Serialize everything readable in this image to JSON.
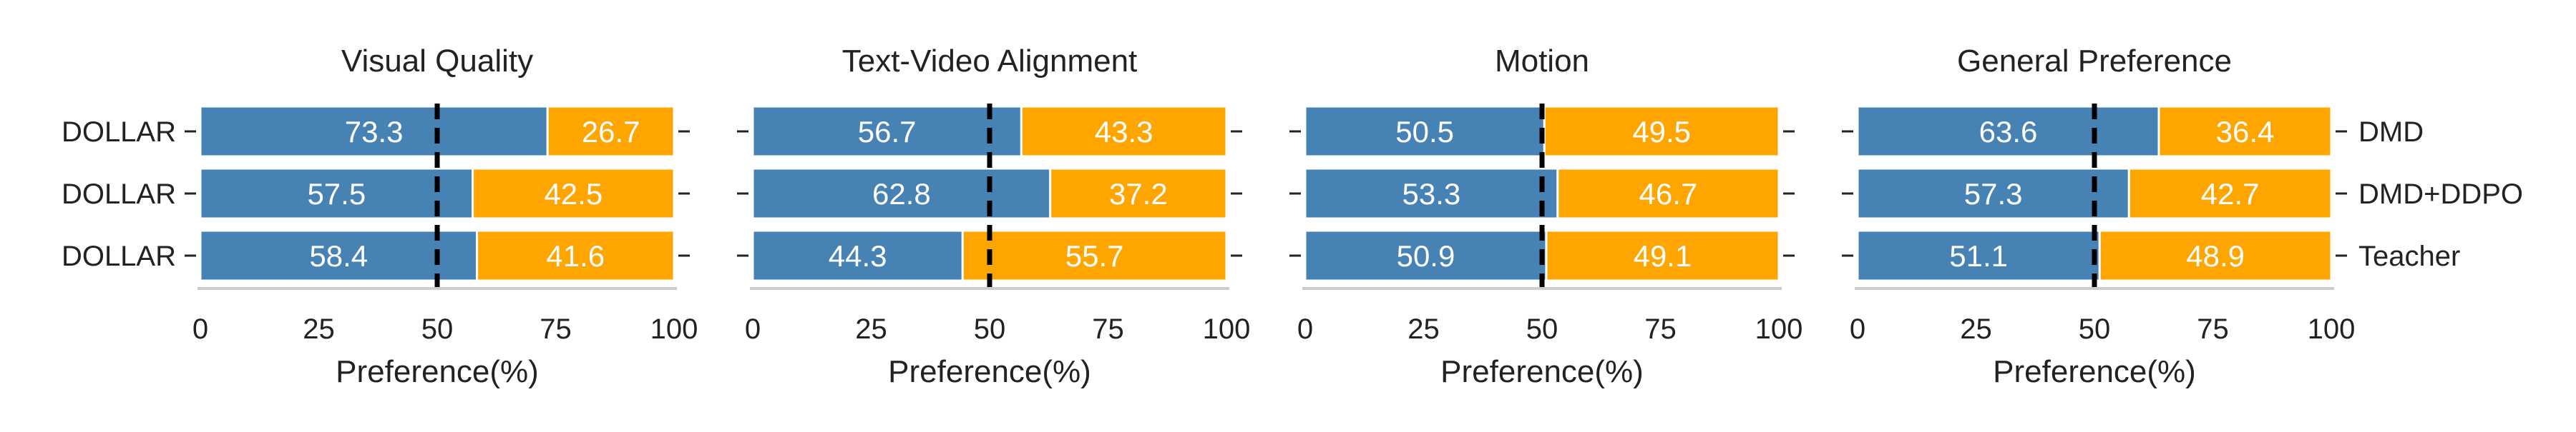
{
  "chart_data": [
    {
      "type": "bar",
      "orientation": "horizontal",
      "stacked": true,
      "title": "Visual Quality",
      "xlabel": "Preference(%)",
      "xlim": [
        0,
        100
      ],
      "xticks": [
        "0",
        "25",
        "50",
        "75",
        "100"
      ],
      "reference_line": 50,
      "left_labels": [
        "DOLLAR",
        "DOLLAR",
        "DOLLAR"
      ],
      "right_labels": [],
      "series": [
        {
          "values": [
            73.3,
            57.5,
            58.4
          ],
          "labels": [
            "73.3",
            "57.5",
            "58.4"
          ]
        },
        {
          "values": [
            26.7,
            42.5,
            41.6
          ],
          "labels": [
            "26.7",
            "42.5",
            "41.6"
          ]
        }
      ]
    },
    {
      "type": "bar",
      "orientation": "horizontal",
      "stacked": true,
      "title": "Text-Video Alignment",
      "xlabel": "Preference(%)",
      "xlim": [
        0,
        100
      ],
      "xticks": [
        "0",
        "25",
        "50",
        "75",
        "100"
      ],
      "reference_line": 50,
      "left_labels": [],
      "right_labels": [],
      "series": [
        {
          "values": [
            56.7,
            62.8,
            44.3
          ],
          "labels": [
            "56.7",
            "62.8",
            "44.3"
          ]
        },
        {
          "values": [
            43.3,
            37.2,
            55.7
          ],
          "labels": [
            "43.3",
            "37.2",
            "55.7"
          ]
        }
      ]
    },
    {
      "type": "bar",
      "orientation": "horizontal",
      "stacked": true,
      "title": "Motion",
      "xlabel": "Preference(%)",
      "xlim": [
        0,
        100
      ],
      "xticks": [
        "0",
        "25",
        "50",
        "75",
        "100"
      ],
      "reference_line": 50,
      "left_labels": [],
      "right_labels": [],
      "series": [
        {
          "values": [
            50.5,
            53.3,
            50.9
          ],
          "labels": [
            "50.5",
            "53.3",
            "50.9"
          ]
        },
        {
          "values": [
            49.5,
            46.7,
            49.1
          ],
          "labels": [
            "49.5",
            "46.7",
            "49.1"
          ]
        }
      ]
    },
    {
      "type": "bar",
      "orientation": "horizontal",
      "stacked": true,
      "title": "General Preference",
      "xlabel": "Preference(%)",
      "xlim": [
        0,
        100
      ],
      "xticks": [
        "0",
        "25",
        "50",
        "75",
        "100"
      ],
      "reference_line": 50,
      "left_labels": [],
      "right_labels": [
        "DMD",
        "DMD+DDPO",
        "Teacher"
      ],
      "series": [
        {
          "values": [
            63.6,
            57.3,
            51.1
          ],
          "labels": [
            "63.6",
            "57.3",
            "51.1"
          ]
        },
        {
          "values": [
            36.4,
            42.7,
            48.9
          ],
          "labels": [
            "36.4",
            "42.7",
            "48.9"
          ]
        }
      ]
    }
  ],
  "colors": {
    "series_a": "#4682b4",
    "series_b": "#ffa500",
    "reference_line": "#000000",
    "axis": "#cccccc",
    "text": "#222222"
  }
}
